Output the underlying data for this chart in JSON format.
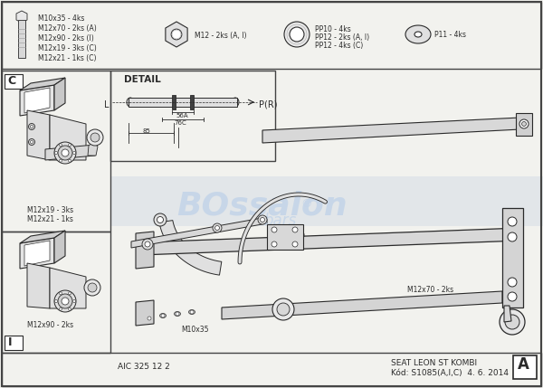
{
  "bg_color": "#f2f2ee",
  "border_color": "#444444",
  "line_color": "#2a2a2a",
  "light_gray": "#cccccc",
  "mid_gray": "#aaaaaa",
  "detail_box_color": "#e8e8e8",
  "watermark_color": "#c5d5e8",
  "title_text": "DETAIL",
  "dim_56A": "56A",
  "dim_76C": "76C",
  "dim_85": "85",
  "label_L": "L",
  "label_PR": "P(R)",
  "bottom_left_label": "AIC 325 12 2",
  "bottom_right_label1": "SEAT LEON ST KOMBI",
  "bottom_right_label2": "Kód: S1085(A,I,C)  4. 6. 2014",
  "corner_C": "C",
  "corner_I": "I",
  "corner_A": "A",
  "bolt_labels": [
    "M10x35 - 4ks",
    "M12x70 - 2ks (A)",
    "M12x90 - 2ks (I)",
    "M12x19 - 3ks (C)",
    "M12x21 - 1ks (C)"
  ],
  "nut_label": "M12 - 2ks (A, I)",
  "washer_labels": [
    "PP10 - 4ks",
    "PP12 - 2ks (A, I)",
    "PP12 - 4ks (C)"
  ],
  "disc_label": "P11 - 4ks",
  "label_c_top1": "M12x19 - 3ks",
  "label_c_top2": "M12x21 - 1ks",
  "label_i_bot": "M12x90 - 2ks",
  "label_main1": "M12x70 - 2ks",
  "label_main2": "M10x35"
}
